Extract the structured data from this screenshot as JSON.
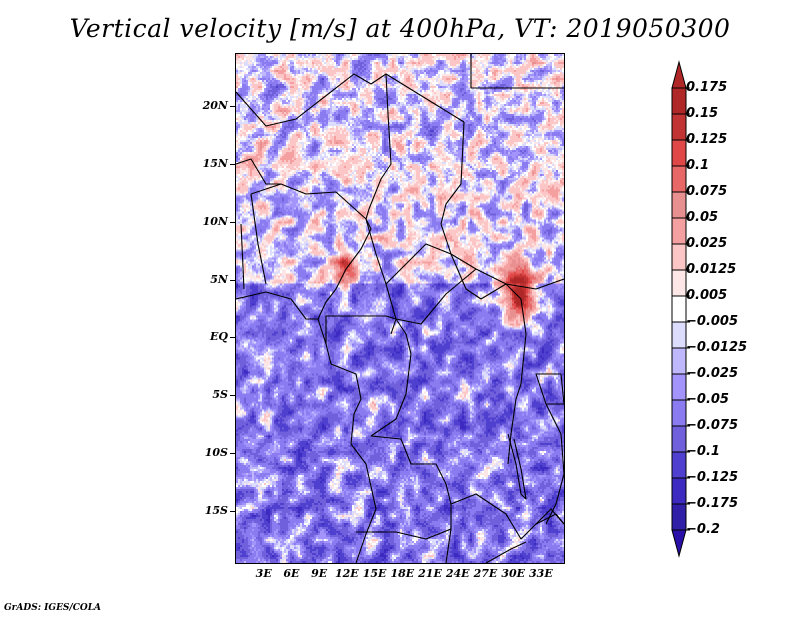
{
  "title": "Vertical velocity [m/s] at 400hPa, VT: 2019050300",
  "credit": "GrADS: IGES/COLA",
  "map": {
    "type": "filled-contour-map",
    "variable": "Vertical velocity",
    "units": "m/s",
    "level": "400hPa",
    "valid_time": "2019050300",
    "lon_range": [
      0,
      35.5
    ],
    "lat_range": [
      -19.5,
      24.5
    ],
    "y_axis_ticks": [
      {
        "lat": 20,
        "label": "20N"
      },
      {
        "lat": 15,
        "label": "15N"
      },
      {
        "lat": 10,
        "label": "10N"
      },
      {
        "lat": 5,
        "label": "5N"
      },
      {
        "lat": 0,
        "label": "EQ"
      },
      {
        "lat": -5,
        "label": "5S"
      },
      {
        "lat": -10,
        "label": "10S"
      },
      {
        "lat": -15,
        "label": "15S"
      }
    ],
    "x_axis_ticks": [
      {
        "lon": 3,
        "label": "3E"
      },
      {
        "lon": 6,
        "label": "6E"
      },
      {
        "lon": 9,
        "label": "9E"
      },
      {
        "lon": 12,
        "label": "12E"
      },
      {
        "lon": 15,
        "label": "15E"
      },
      {
        "lon": 18,
        "label": "18E"
      },
      {
        "lon": 21,
        "label": "21E"
      },
      {
        "lon": 24,
        "label": "24E"
      },
      {
        "lon": 27,
        "label": "27E"
      },
      {
        "lon": 30,
        "label": "30E"
      },
      {
        "lon": 33,
        "label": "33E"
      }
    ],
    "notable_features": [
      {
        "description": "strong ascent (dark red) near Uganda/South Sudan border",
        "lon": 30.5,
        "lat": 4
      },
      {
        "description": "strong ascent cluster over Cameroon highlands",
        "lon": 11.5,
        "lat": 6.5
      },
      {
        "description": "noisy mixed ascent/descent over Gulf of Guinea",
        "lon": 4,
        "lat": 3
      }
    ]
  },
  "colorbar": {
    "orientation": "vertical",
    "extend": "both",
    "levels": [
      {
        "label": "0.175",
        "color": "#b02727"
      },
      {
        "label": "0.15",
        "color": "#c23434"
      },
      {
        "label": "0.125",
        "color": "#e04848"
      },
      {
        "label": "0.1",
        "color": "#e86767"
      },
      {
        "label": "0.075",
        "color": "#e89090"
      },
      {
        "label": "0.05",
        "color": "#f5a0a0"
      },
      {
        "label": "0.025",
        "color": "#fdc6c6"
      },
      {
        "label": "0.0125",
        "color": "#fde6e6"
      },
      {
        "label": "0.005",
        "color": "#ffffff"
      },
      {
        "label": "-0.005",
        "color": "#dcdcfc"
      },
      {
        "label": "-0.0125",
        "color": "#c0b8fc"
      },
      {
        "label": "-0.025",
        "color": "#a394fb"
      },
      {
        "label": "-0.05",
        "color": "#8a7cf0"
      },
      {
        "label": "-0.075",
        "color": "#7060dc"
      },
      {
        "label": "-0.1",
        "color": "#5040d0"
      },
      {
        "label": "-0.125",
        "color": "#3d2ac0"
      },
      {
        "label": "-0.175",
        "color": "#3020a8"
      },
      {
        "label": "-0.2",
        "color": ""
      }
    ],
    "top_triangle_color": "#b02727",
    "bottom_triangle_color": "#2a10a8"
  }
}
